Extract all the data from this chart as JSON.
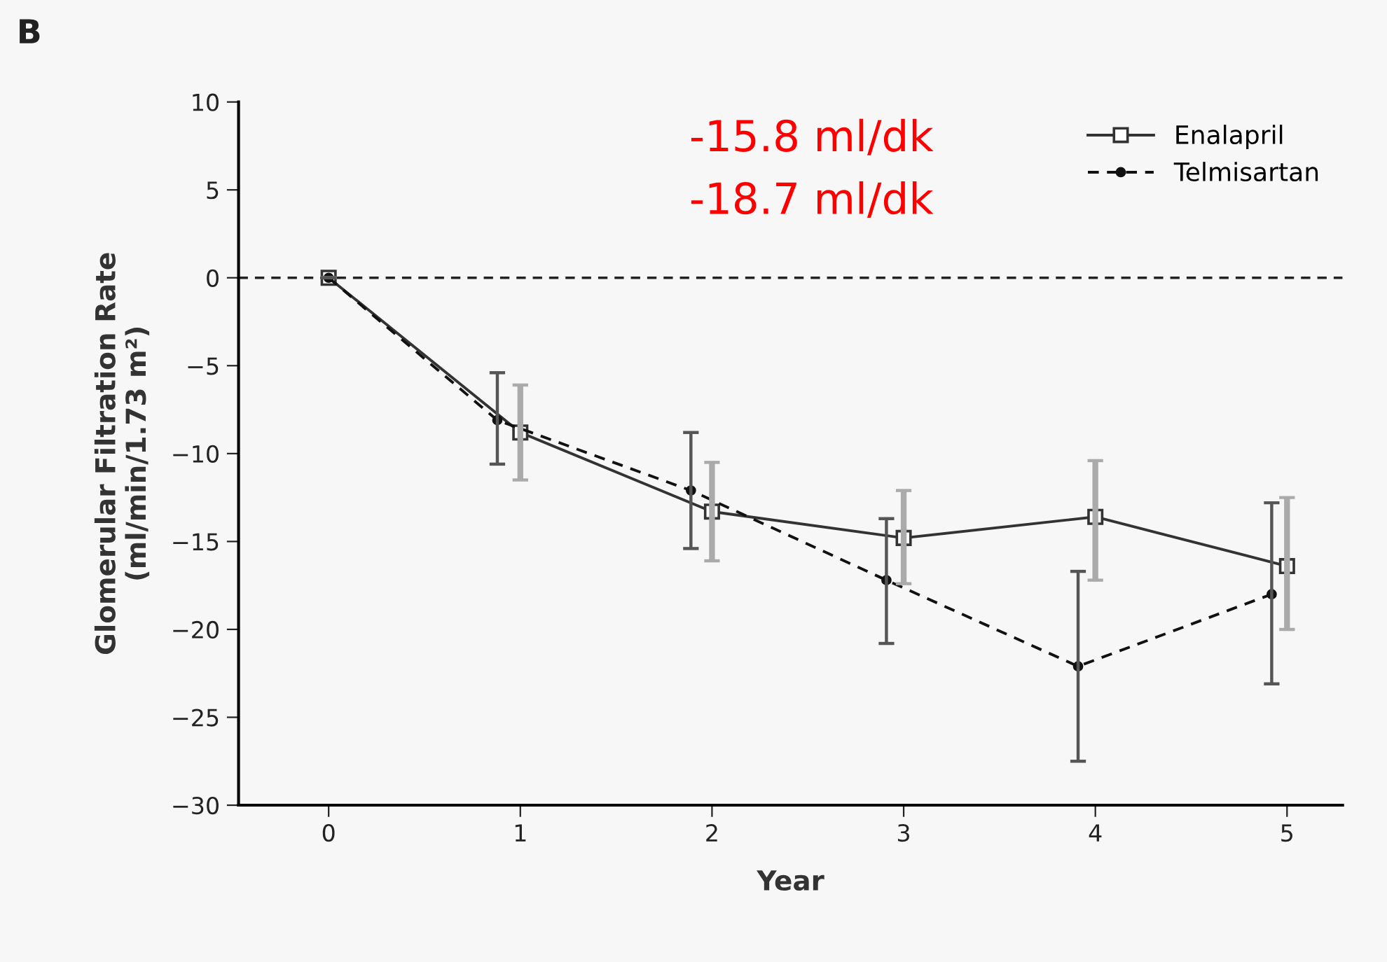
{
  "chart_data": {
    "type": "line",
    "title": "B",
    "xlabel": "Year",
    "ylabel": "Glomerular Filtration Rate\n(ml/min/1.73 m²)",
    "xlim": [
      -0.47,
      5.29
    ],
    "xticks": [
      0,
      1,
      2,
      3,
      4,
      5
    ],
    "ylim": [
      -30,
      10
    ],
    "yticks": [
      -30,
      -25,
      -20,
      -15,
      -10,
      -5,
      0,
      5,
      10
    ],
    "grid": false,
    "legend": "top right",
    "annotations": [
      "-15.8 ml/dk",
      "-18.7 ml/dk"
    ],
    "ref_lines": [
      {
        "axis": "y",
        "value": 0,
        "line_style": "dashed",
        "color": "#222222"
      }
    ],
    "series": [
      {
        "name": "Enalapril",
        "color": "#333333",
        "marker": "square",
        "line_style": "solid",
        "x": [
          0,
          1,
          2,
          3,
          4,
          5
        ],
        "values": [
          0,
          -8.8,
          -13.3,
          -14.8,
          -13.6,
          -16.4
        ],
        "errors": [
          null,
          [
            -11.5,
            -6.1
          ],
          [
            -16.1,
            -10.5
          ],
          [
            -17.4,
            -12.1
          ],
          [
            -17.2,
            -10.4
          ],
          [
            -20.0,
            -12.5
          ]
        ]
      },
      {
        "name": "Telmisartan",
        "color": "#111111",
        "marker": "circle",
        "line_style": "dashed",
        "x": [
          0,
          0.88,
          1.89,
          2.91,
          3.91,
          4.92
        ],
        "values": [
          0,
          -8.1,
          -12.1,
          -17.2,
          -22.1,
          -18.0
        ],
        "errors": [
          null,
          [
            -10.6,
            -5.4
          ],
          [
            -15.4,
            -8.8
          ],
          [
            -20.8,
            -13.7
          ],
          [
            -27.5,
            -16.7
          ],
          [
            -23.1,
            -12.8
          ]
        ]
      }
    ]
  }
}
